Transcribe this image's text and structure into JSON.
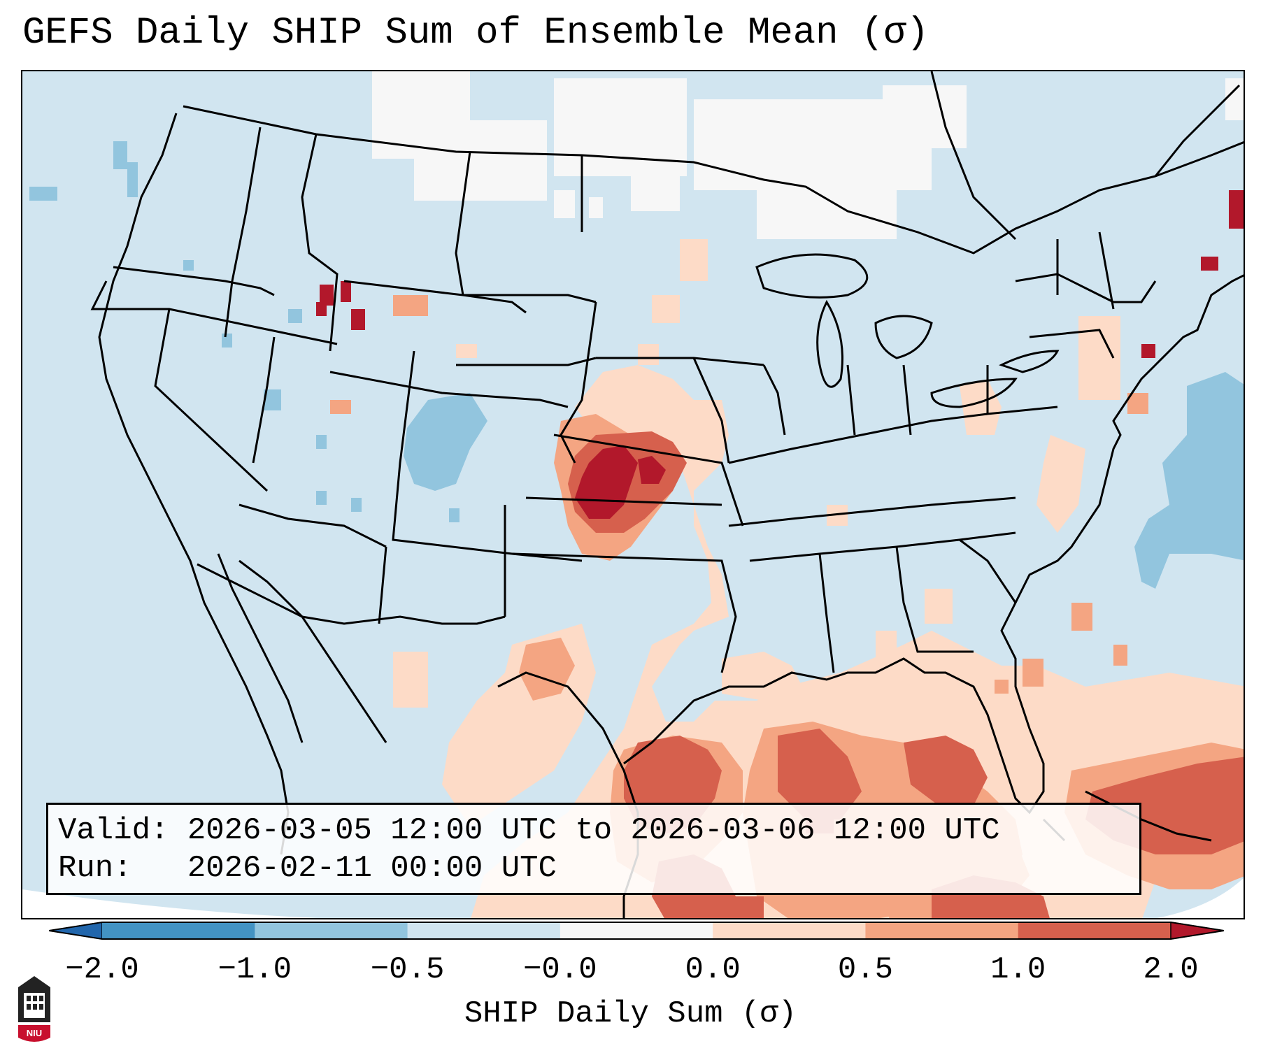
{
  "title": "GEFS Daily SHIP Sum of Ensemble Mean (σ)",
  "info_box": {
    "valid_label": "Valid:",
    "valid_value": "2026-03-05 12:00 UTC to 2026-03-06 12:00 UTC",
    "run_label": "Run:",
    "run_value": "2026-02-11 00:00 UTC"
  },
  "colorbar": {
    "label": "SHIP Daily Sum (σ)",
    "ticks": [
      "−2.0",
      "−1.0",
      "−0.5",
      "−0.0",
      "0.0",
      "0.5",
      "1.0",
      "2.0"
    ],
    "colors": [
      "#4393c3",
      "#92c5de",
      "#d1e5f0",
      "#f7f7f7",
      "#fddbc7",
      "#f4a582",
      "#d6604d"
    ],
    "extend_low_color": "#2166ac",
    "extend_high_color": "#b2182b"
  },
  "map_colors": {
    "ocean_light_blue": "#d1e5f0",
    "blue_medium": "#92c5de",
    "white_neutral": "#f7f7f7",
    "peach": "#fddbc7",
    "salmon": "#f4a582",
    "red": "#d6604d",
    "dark_red": "#b2182b"
  },
  "logo": {
    "text": "NIU",
    "icon": "university-shield-icon"
  }
}
